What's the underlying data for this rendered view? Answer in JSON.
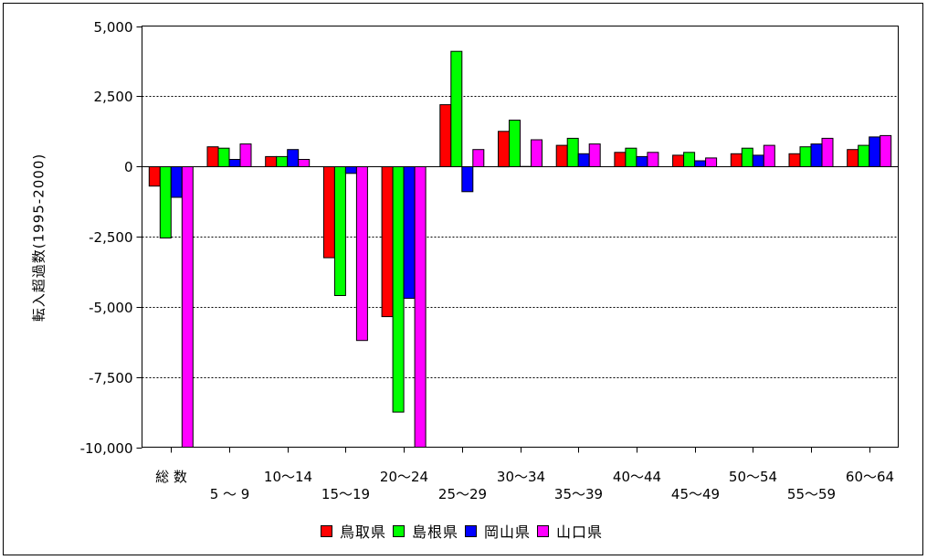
{
  "chart_data": {
    "type": "bar",
    "ylabel": "転入超過数(1995-2000)",
    "categories": [
      "総 数",
      "5 ～ 9",
      "10～14",
      "15～19",
      "20～24",
      "25～29",
      "30～34",
      "35～39",
      "40～44",
      "45～49",
      "50～54",
      "55～59",
      "60～64"
    ],
    "ylim": [
      -10000,
      5000
    ],
    "yticks": [
      5000,
      2500,
      0,
      -2500,
      -5000,
      -7500,
      -10000
    ],
    "ytick_labels": [
      "5,000",
      "2,500",
      "0",
      "-2,500",
      "-5,000",
      "-7,500",
      "-10,000"
    ],
    "grid": true,
    "legend_position": "bottom",
    "series": [
      {
        "name": "鳥取県",
        "color": "#FF0000",
        "values": [
          -700,
          700,
          350,
          -3250,
          -5350,
          2200,
          1250,
          750,
          500,
          400,
          450,
          450,
          600
        ]
      },
      {
        "name": "島根県",
        "color": "#00FF00",
        "values": [
          -2550,
          650,
          350,
          -4600,
          -8750,
          4100,
          1650,
          1000,
          650,
          500,
          650,
          700,
          750
        ]
      },
      {
        "name": "岡山県",
        "color": "#0000FF",
        "values": [
          -1100,
          250,
          600,
          -250,
          -4700,
          -900,
          0,
          450,
          350,
          200,
          400,
          800,
          1050
        ]
      },
      {
        "name": "山口県",
        "color": "#FF00FF",
        "values": [
          -10000,
          800,
          250,
          -6200,
          -10000,
          600,
          950,
          800,
          500,
          300,
          750,
          1000,
          1100
        ]
      }
    ]
  }
}
